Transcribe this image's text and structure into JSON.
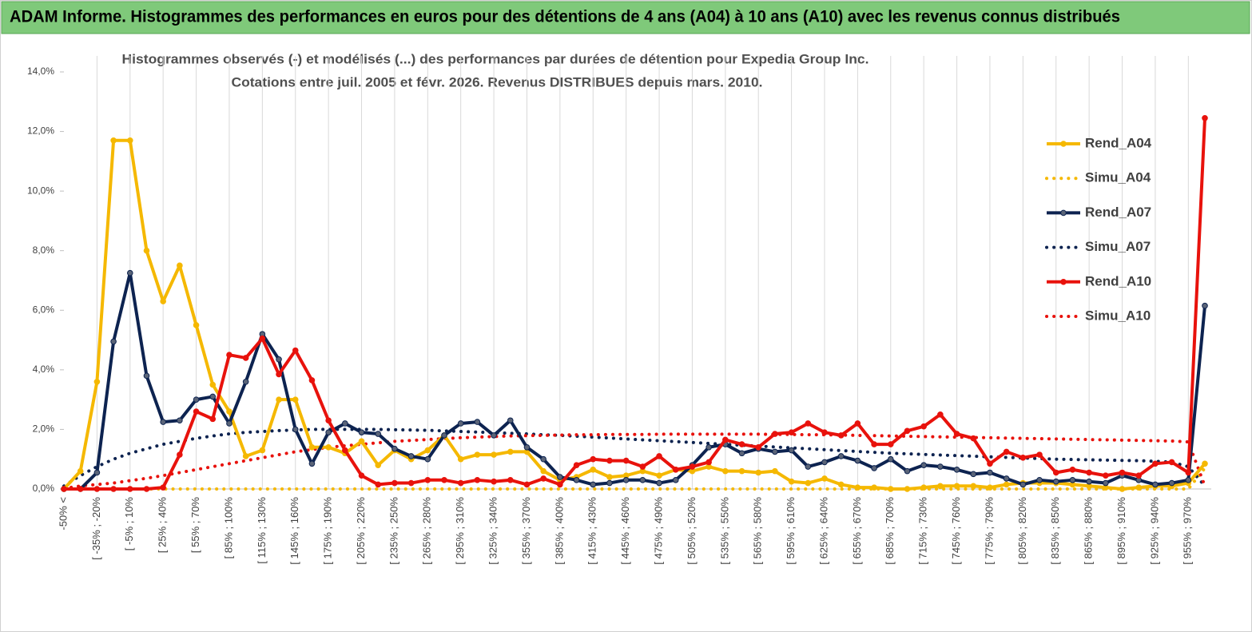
{
  "chart_data": {
    "type": "line",
    "banner": "ADAM Informe. Histogrammes des performances en euros pour des détentions de 4 ans (A04) à 10 ans (A10) avec les revenus connus distribués",
    "title": [
      "Histogrammes observés (-) et modélisés (...) des performances par durées de détention pour Expedia Group Inc.",
      "Cotations entre juil. 2005 et févr. 2026. Revenus DISTRIBUES depuis mars. 2010."
    ],
    "categories": [
      "-50% <",
      null,
      "[ -35% ; -20%",
      null,
      "[ -5% ; 10%",
      null,
      "[ 25% ; 40%",
      null,
      "[ 55% ; 70%",
      null,
      "[ 85% ; 100%",
      null,
      "[ 115% ; 130%",
      null,
      "[ 145% ; 160%",
      null,
      "[ 175% ; 190%",
      null,
      "[ 205% ; 220%",
      null,
      "[ 235% ; 250%",
      null,
      "[ 265% ; 280%",
      null,
      "[ 295% ; 310%",
      null,
      "[ 325% ; 340%",
      null,
      "[ 355% ; 370%",
      null,
      "[ 385% ; 400%",
      null,
      "[ 415% ; 430%",
      null,
      "[ 445% ; 460%",
      null,
      "[ 475% ; 490%",
      null,
      "[ 505% ; 520%",
      null,
      "[ 535% ; 550%",
      null,
      "[ 565% ; 580%",
      null,
      "[ 595% ; 610%",
      null,
      "[ 625% ; 640%",
      null,
      "[ 655% ; 670%",
      null,
      "[ 685% ; 700%",
      null,
      "[ 715% ; 730%",
      null,
      "[ 745% ; 760%",
      null,
      "[ 775% ; 790%",
      null,
      "[ 805% ; 820%",
      null,
      "[ 835% ; 850%",
      null,
      "[ 865% ; 880%",
      null,
      "[ 895% ; 910%",
      null,
      "[ 925% ; 940%",
      null,
      "[ 955% ; 970%",
      null
    ],
    "series": [
      {
        "name": "Rend_A04",
        "color": "#f5b800",
        "line_style": "solid",
        "markers": true,
        "values": [
          0,
          0.6,
          3.6,
          11.7,
          11.7,
          8.0,
          6.3,
          7.5,
          5.5,
          3.5,
          2.6,
          1.1,
          1.3,
          3.0,
          3.0,
          1.4,
          1.4,
          1.2,
          1.6,
          0.8,
          1.3,
          1.0,
          1.3,
          1.8,
          1.0,
          1.15,
          1.15,
          1.25,
          1.25,
          0.6,
          0.3,
          0.4,
          0.65,
          0.4,
          0.45,
          0.6,
          0.45,
          0.65,
          0.6,
          0.75,
          0.6,
          0.6,
          0.55,
          0.6,
          0.25,
          0.2,
          0.35,
          0.15,
          0.05,
          0.05,
          0,
          0,
          0.05,
          0.1,
          0.1,
          0.1,
          0.05,
          0.15,
          0.2,
          0.2,
          0.2,
          0.15,
          0.1,
          0.05,
          0,
          0.05,
          0.1,
          0.1,
          0.2,
          0.85
        ]
      },
      {
        "name": "Simu_A04",
        "color": "#f5b800",
        "line_style": "dotted",
        "markers": false,
        "values": [
          0,
          0,
          0,
          0,
          0,
          0,
          0,
          0,
          0,
          0,
          0,
          0,
          0,
          0,
          0,
          0,
          0,
          0,
          0,
          0,
          0,
          0,
          0,
          0,
          0,
          0,
          0,
          0,
          0,
          0,
          0,
          0,
          0,
          0,
          0,
          0,
          0,
          0,
          0,
          0,
          0,
          0,
          0,
          0,
          0,
          0,
          0,
          0,
          0,
          0,
          0,
          0,
          0,
          0,
          0,
          0,
          0,
          0,
          0,
          0,
          0,
          0,
          0,
          0,
          0,
          0,
          0,
          0,
          0,
          0.7
        ]
      },
      {
        "name": "Rend_A07",
        "color": "#0d2350",
        "line_style": "solid",
        "markers": true,
        "values": [
          0,
          0,
          0.55,
          4.95,
          7.25,
          3.8,
          2.25,
          2.3,
          3.0,
          3.1,
          2.2,
          3.6,
          5.2,
          4.35,
          2.0,
          0.85,
          1.9,
          2.2,
          1.9,
          1.85,
          1.35,
          1.1,
          1.0,
          1.8,
          2.2,
          2.25,
          1.8,
          2.3,
          1.4,
          1.0,
          0.4,
          0.3,
          0.15,
          0.2,
          0.3,
          0.3,
          0.2,
          0.3,
          0.8,
          1.4,
          1.5,
          1.2,
          1.35,
          1.25,
          1.3,
          0.75,
          0.9,
          1.1,
          0.95,
          0.7,
          1.0,
          0.6,
          0.8,
          0.75,
          0.65,
          0.5,
          0.55,
          0.35,
          0.15,
          0.3,
          0.25,
          0.3,
          0.25,
          0.2,
          0.45,
          0.3,
          0.15,
          0.2,
          0.3,
          6.15
        ]
      },
      {
        "name": "Simu_A07",
        "color": "#0d2350",
        "line_style": "dotted",
        "markers": false,
        "values": [
          0.1,
          0.45,
          0.75,
          1.0,
          1.2,
          1.35,
          1.5,
          1.6,
          1.7,
          1.78,
          1.85,
          1.9,
          1.93,
          1.96,
          1.98,
          2.0,
          2.0,
          2.0,
          2.0,
          2.0,
          1.99,
          1.98,
          1.97,
          1.95,
          1.93,
          1.91,
          1.89,
          1.87,
          1.85,
          1.82,
          1.8,
          1.77,
          1.74,
          1.71,
          1.68,
          1.65,
          1.62,
          1.59,
          1.56,
          1.53,
          1.5,
          1.47,
          1.44,
          1.41,
          1.38,
          1.35,
          1.32,
          1.29,
          1.26,
          1.23,
          1.2,
          1.18,
          1.16,
          1.14,
          1.12,
          1.1,
          1.08,
          1.06,
          1.04,
          1.02,
          1.0,
          0.99,
          0.98,
          0.97,
          0.96,
          0.95,
          0.93,
          0.9,
          0.75,
          0.1
        ]
      },
      {
        "name": "Rend_A10",
        "color": "#e8120c",
        "line_style": "solid",
        "markers": true,
        "values": [
          0,
          0,
          0,
          0,
          0,
          0,
          0.05,
          1.15,
          2.6,
          2.35,
          4.5,
          4.4,
          5.05,
          3.85,
          4.65,
          3.65,
          2.3,
          1.3,
          0.45,
          0.15,
          0.2,
          0.2,
          0.3,
          0.3,
          0.2,
          0.3,
          0.25,
          0.3,
          0.15,
          0.35,
          0.15,
          0.8,
          1.0,
          0.95,
          0.95,
          0.75,
          1.1,
          0.65,
          0.75,
          0.9,
          1.65,
          1.5,
          1.4,
          1.85,
          1.9,
          2.2,
          1.9,
          1.8,
          2.2,
          1.5,
          1.5,
          1.95,
          2.1,
          2.5,
          1.85,
          1.7,
          0.85,
          1.25,
          1.05,
          1.15,
          0.55,
          0.65,
          0.55,
          0.45,
          0.55,
          0.45,
          0.85,
          0.9,
          0.55,
          12.45
        ]
      },
      {
        "name": "Simu_A10",
        "color": "#e8120c",
        "line_style": "dotted",
        "markers": false,
        "values": [
          0.02,
          0.1,
          0.15,
          0.2,
          0.28,
          0.36,
          0.45,
          0.55,
          0.65,
          0.75,
          0.85,
          0.95,
          1.05,
          1.15,
          1.25,
          1.32,
          1.4,
          1.45,
          1.5,
          1.55,
          1.6,
          1.63,
          1.66,
          1.69,
          1.72,
          1.74,
          1.76,
          1.78,
          1.79,
          1.8,
          1.81,
          1.82,
          1.82,
          1.83,
          1.83,
          1.83,
          1.84,
          1.84,
          1.84,
          1.84,
          1.84,
          1.84,
          1.84,
          1.83,
          1.83,
          1.82,
          1.82,
          1.81,
          1.8,
          1.79,
          1.78,
          1.77,
          1.76,
          1.75,
          1.74,
          1.73,
          1.72,
          1.71,
          1.7,
          1.69,
          1.68,
          1.67,
          1.66,
          1.65,
          1.64,
          1.63,
          1.62,
          1.61,
          1.58,
          0.1
        ]
      }
    ],
    "ylim": [
      0,
      14
    ],
    "yticks": [
      {
        "value": 0,
        "label": "0,0%"
      },
      {
        "value": 2,
        "label": "2,0%"
      },
      {
        "value": 4,
        "label": "4,0%"
      },
      {
        "value": 6,
        "label": "6,0%"
      },
      {
        "value": 8,
        "label": "8,0%"
      },
      {
        "value": 10,
        "label": "10,0%"
      },
      {
        "value": 12,
        "label": "12,0%"
      },
      {
        "value": 14,
        "label": "14,0%"
      }
    ],
    "legend": "right"
  }
}
